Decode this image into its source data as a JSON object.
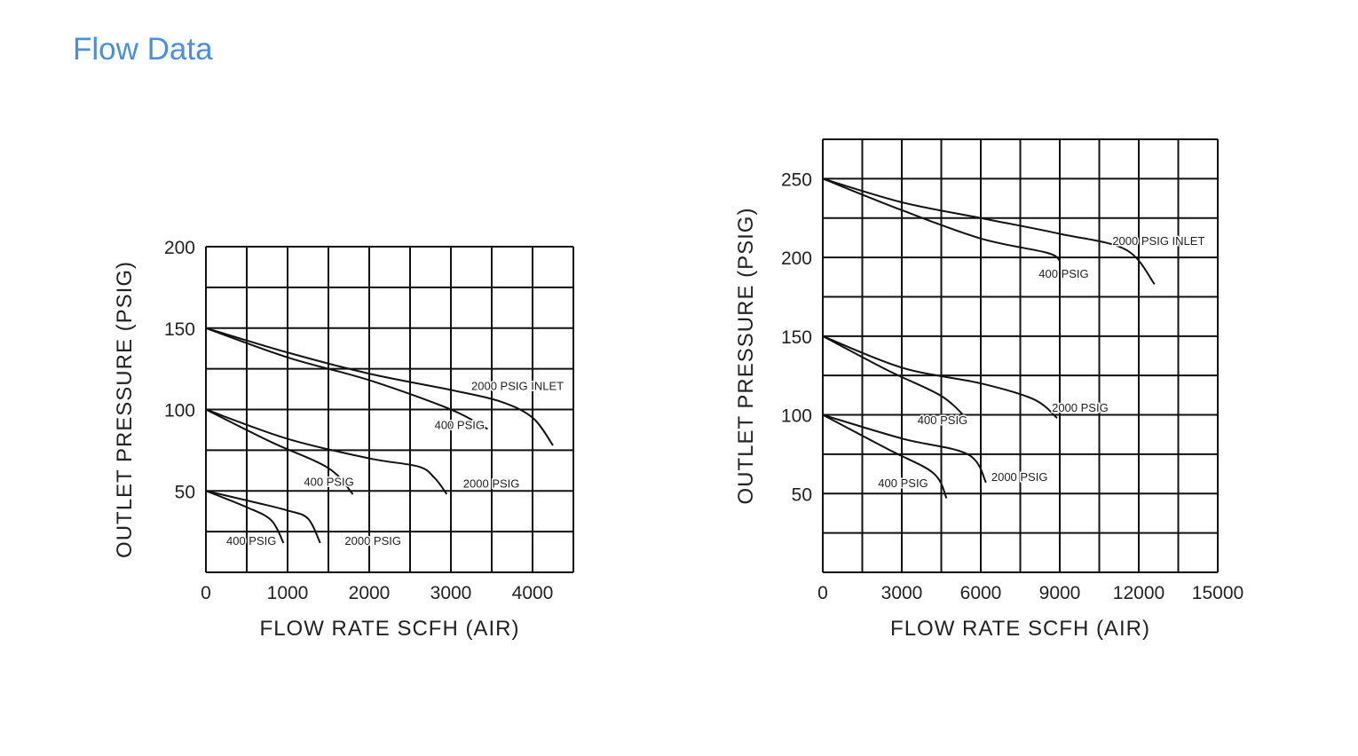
{
  "page": {
    "title": "Flow Data"
  },
  "chart_data": [
    {
      "type": "line",
      "title": "",
      "xlabel": "FLOW  RATE  SCFH (AIR)",
      "ylabel": "OUTLET  PRESSURE (PSIG)",
      "xlim": [
        0,
        4500
      ],
      "ylim": [
        0,
        200
      ],
      "x_ticks": [
        "0",
        "1000",
        "2000",
        "3000",
        "4000"
      ],
      "x_tick_values": [
        0,
        1000,
        2000,
        3000,
        4000
      ],
      "y_ticks": [
        "50",
        "100",
        "150",
        "200"
      ],
      "y_tick_values": [
        50,
        100,
        150,
        200
      ],
      "grid": {
        "x_step": 500,
        "y_step": 25
      },
      "series": [
        {
          "name": "2000  PSIG INLET",
          "x": [
            0,
            1000,
            2000,
            3000,
            3600,
            4000,
            4250
          ],
          "y": [
            150,
            135,
            122,
            112,
            105,
            95,
            78
          ]
        },
        {
          "name": "400  PSIG",
          "x": [
            0,
            1000,
            2000,
            3000,
            3450
          ],
          "y": [
            150,
            132,
            118,
            100,
            88
          ]
        },
        {
          "name": "2000  PSIG",
          "x": [
            0,
            1000,
            2000,
            2600,
            2800,
            2950
          ],
          "y": [
            100,
            82,
            70,
            65,
            58,
            48
          ]
        },
        {
          "name": "400  PSIG",
          "x": [
            0,
            800,
            1500,
            1800
          ],
          "y": [
            100,
            80,
            64,
            48
          ]
        },
        {
          "name": "2000  PSIG",
          "x": [
            0,
            600,
            1000,
            1250,
            1400
          ],
          "y": [
            50,
            43,
            38,
            33,
            18
          ]
        },
        {
          "name": "400  PSIG",
          "x": [
            0,
            500,
            800,
            950
          ],
          "y": [
            50,
            40,
            32,
            18
          ]
        }
      ],
      "labels": [
        {
          "text": "2000  PSIG INLET",
          "x": 3250,
          "y": 112
        },
        {
          "text": "400  PSIG",
          "x": 2800,
          "y": 88
        },
        {
          "text": "2000  PSIG",
          "x": 3150,
          "y": 52
        },
        {
          "text": "400  PSIG",
          "x": 1200,
          "y": 53
        },
        {
          "text": "2000  PSIG",
          "x": 1700,
          "y": 17
        },
        {
          "text": "400  PSIG",
          "x": 250,
          "y": 17
        }
      ]
    },
    {
      "type": "line",
      "title": "",
      "xlabel": "FLOW  RATE  SCFH (AIR)",
      "ylabel": "OUTLET  PRESSURE (PSIG)",
      "xlim": [
        0,
        15000
      ],
      "ylim": [
        0,
        275
      ],
      "x_ticks": [
        "0",
        "3000",
        "6000",
        "9000",
        "12000",
        "15000"
      ],
      "x_tick_values": [
        0,
        3000,
        6000,
        9000,
        12000,
        15000
      ],
      "y_ticks": [
        "50",
        "100",
        "150",
        "200",
        "250"
      ],
      "y_tick_values": [
        50,
        100,
        150,
        200,
        250
      ],
      "grid": {
        "x_step": 1500,
        "y_step": 25
      },
      "series": [
        {
          "name": "2000  PSIG INLET",
          "x": [
            0,
            3000,
            6000,
            9000,
            11500,
            12600
          ],
          "y": [
            250,
            235,
            225,
            215,
            205,
            183
          ]
        },
        {
          "name": "400  PSIG",
          "x": [
            0,
            3000,
            6000,
            8500,
            9000
          ],
          "y": [
            250,
            230,
            212,
            203,
            198
          ]
        },
        {
          "name": "2000  PSIG",
          "x": [
            0,
            3000,
            6000,
            8000,
            8900
          ],
          "y": [
            150,
            130,
            120,
            110,
            98
          ]
        },
        {
          "name": "400  PSIG",
          "x": [
            0,
            2500,
            4500,
            5500
          ],
          "y": [
            150,
            128,
            112,
            97
          ]
        },
        {
          "name": "2000  PSIG",
          "x": [
            0,
            3000,
            5500,
            6200
          ],
          "y": [
            100,
            85,
            75,
            57
          ]
        },
        {
          "name": "400  PSIG",
          "x": [
            0,
            2500,
            4200,
            4700
          ],
          "y": [
            100,
            78,
            63,
            47
          ]
        }
      ],
      "labels": [
        {
          "text": "2000  PSIG INLET",
          "x": 11000,
          "y": 208
        },
        {
          "text": "400  PSIG",
          "x": 8200,
          "y": 187
        },
        {
          "text": "2000  PSIG",
          "x": 8700,
          "y": 102
        },
        {
          "text": "400  PSIG",
          "x": 3600,
          "y": 94
        },
        {
          "text": "2000  PSIG",
          "x": 6400,
          "y": 58
        },
        {
          "text": "400  PSIG",
          "x": 2100,
          "y": 54
        }
      ]
    }
  ]
}
